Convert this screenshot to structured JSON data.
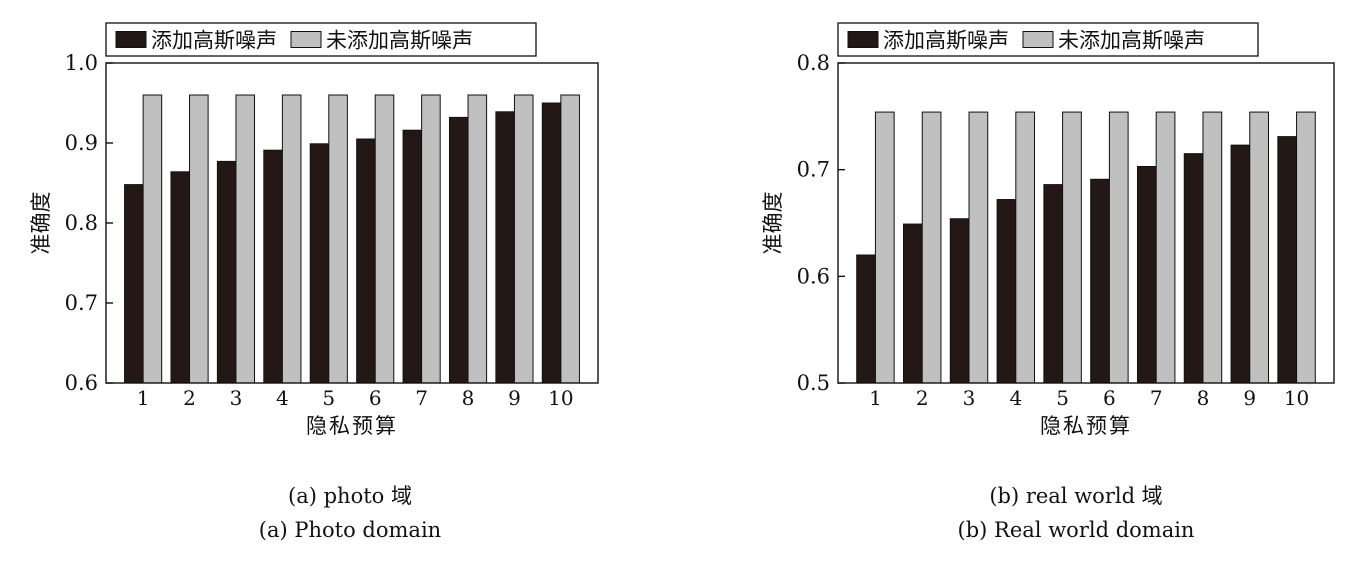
{
  "chart_data": [
    {
      "type": "bar",
      "title": "",
      "xlabel": "隐私预算",
      "ylabel": "准确度",
      "ylim": [
        0.6,
        1.0
      ],
      "yticks": [
        "0.6",
        "0.7",
        "0.8",
        "0.9",
        "1.0"
      ],
      "categories": [
        "1",
        "2",
        "3",
        "4",
        "5",
        "6",
        "7",
        "8",
        "9",
        "10"
      ],
      "series": [
        {
          "name": "添加高斯噪声",
          "color": "#231815",
          "values": [
            0.848,
            0.864,
            0.877,
            0.891,
            0.899,
            0.905,
            0.916,
            0.932,
            0.939,
            0.95
          ]
        },
        {
          "name": "未添加高斯噪声",
          "color": "#c0c0c0",
          "values": [
            0.96,
            0.96,
            0.96,
            0.96,
            0.96,
            0.96,
            0.96,
            0.96,
            0.96,
            0.96
          ]
        }
      ],
      "legend_position": "top",
      "grid": false
    },
    {
      "type": "bar",
      "title": "",
      "xlabel": "隐私预算",
      "ylabel": "准确度",
      "ylim": [
        0.5,
        0.8
      ],
      "yticks": [
        "0.5",
        "0.6",
        "0.7",
        "0.8"
      ],
      "categories": [
        "1",
        "2",
        "3",
        "4",
        "5",
        "6",
        "7",
        "8",
        "9",
        "10"
      ],
      "series": [
        {
          "name": "添加高斯噪声",
          "color": "#231815",
          "values": [
            0.62,
            0.649,
            0.654,
            0.672,
            0.686,
            0.691,
            0.703,
            0.715,
            0.723,
            0.731
          ]
        },
        {
          "name": "未添加高斯噪声",
          "color": "#c0c0c0",
          "values": [
            0.754,
            0.754,
            0.754,
            0.754,
            0.754,
            0.754,
            0.754,
            0.754,
            0.754,
            0.754
          ]
        }
      ],
      "legend_position": "top",
      "grid": false
    }
  ],
  "captions": [
    {
      "cn": "(a) photo 域",
      "en": "(a) Photo domain"
    },
    {
      "cn": "(b) real world 域",
      "en": "(b) Real world domain"
    }
  ]
}
